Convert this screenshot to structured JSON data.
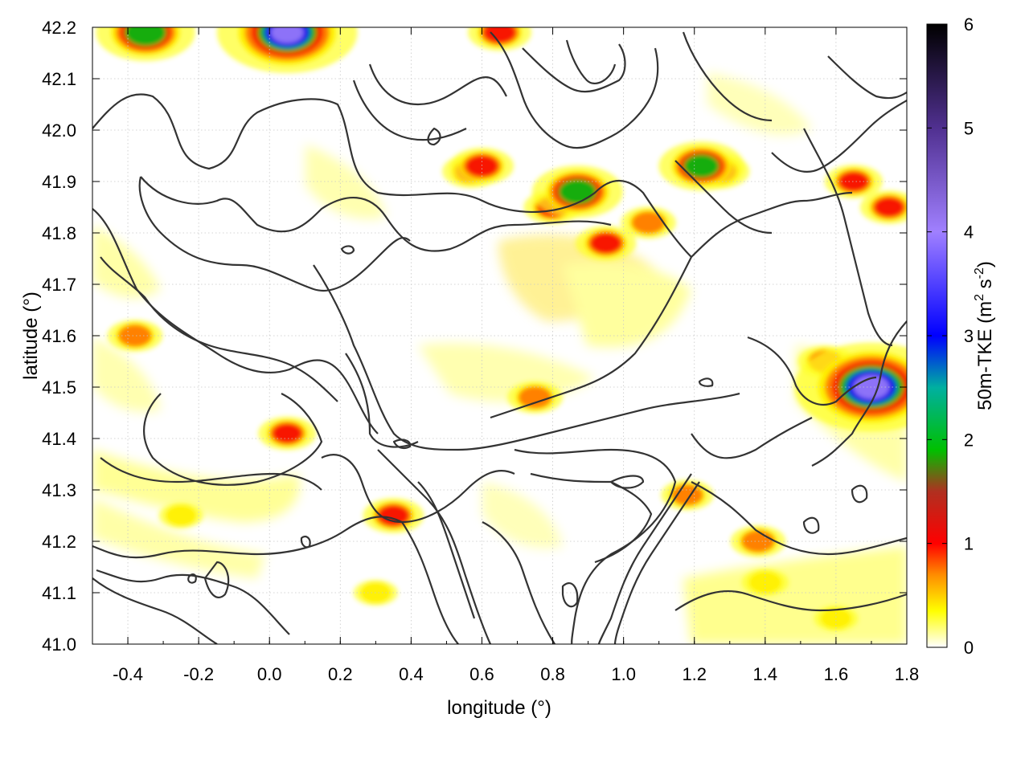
{
  "chart_data": {
    "type": "heatmap",
    "title": "",
    "xlabel": "longitude (°)",
    "ylabel": "latitude (°)",
    "xlim": [
      -0.5,
      1.8
    ],
    "ylim": [
      41.0,
      42.2
    ],
    "xticks": [
      -0.4,
      -0.2,
      0.0,
      0.2,
      0.4,
      0.6,
      0.8,
      1.0,
      1.2,
      1.4,
      1.6,
      1.8
    ],
    "xtick_labels": [
      "-0.4",
      "-0.2",
      "0.0",
      "0.2",
      "0.4",
      "0.6",
      "0.8",
      "1.0",
      "1.2",
      "1.4",
      "1.6",
      "1.8"
    ],
    "yticks": [
      41.0,
      41.1,
      41.2,
      41.3,
      41.4,
      41.5,
      41.6,
      41.7,
      41.8,
      41.9,
      42.0,
      42.1,
      42.2
    ],
    "ytick_labels": [
      "41.0",
      "41.1",
      "41.2",
      "41.3",
      "41.4",
      "41.5",
      "41.6",
      "41.7",
      "41.8",
      "41.9",
      "42.0",
      "42.1",
      "42.2"
    ],
    "grid": true,
    "colorbar": {
      "label": "50m-TKE (m² s⁻²)",
      "label_main": "50m-TKE (m",
      "label_sup1": "2",
      "label_mid": " s",
      "label_sup2": "-2",
      "label_end": ")",
      "range": [
        0,
        6
      ],
      "ticks": [
        0,
        1,
        2,
        3,
        4,
        5,
        6
      ],
      "tick_labels": [
        "0",
        "1",
        "2",
        "3",
        "4",
        "5",
        "6"
      ],
      "stops": [
        {
          "v": 0.0,
          "color": "#ffffff"
        },
        {
          "v": 0.35,
          "color": "#ffff00"
        },
        {
          "v": 0.7,
          "color": "#ff8c00"
        },
        {
          "v": 1.0,
          "color": "#ff0000"
        },
        {
          "v": 1.5,
          "color": "#b03020"
        },
        {
          "v": 1.9,
          "color": "#00c000"
        },
        {
          "v": 2.5,
          "color": "#00b0a0"
        },
        {
          "v": 3.0,
          "color": "#0000ff"
        },
        {
          "v": 4.0,
          "color": "#a080ff"
        },
        {
          "v": 5.0,
          "color": "#503090"
        },
        {
          "v": 6.0,
          "color": "#000000"
        }
      ]
    },
    "hotspots": [
      {
        "lon": 0.95,
        "lat": 41.78,
        "tke": 1.1
      },
      {
        "lon": 0.8,
        "lat": 41.85,
        "tke": 1.0
      },
      {
        "lon": 0.87,
        "lat": 41.88,
        "tke": 2.2
      },
      {
        "lon": 0.6,
        "lat": 41.93,
        "tke": 1.2
      },
      {
        "lon": 0.57,
        "lat": 41.92,
        "tke": 1.0
      },
      {
        "lon": 1.27,
        "lat": 41.92,
        "tke": 1.1
      },
      {
        "lon": 1.22,
        "lat": 41.93,
        "tke": 2.0
      },
      {
        "lon": 1.7,
        "lat": 41.5,
        "tke": 4.5
      },
      {
        "lon": 1.72,
        "lat": 41.47,
        "tke": 1.2
      },
      {
        "lon": 1.57,
        "lat": 41.55,
        "tke": 0.9
      },
      {
        "lon": 0.05,
        "lat": 41.41,
        "tke": 1.0
      },
      {
        "lon": 0.35,
        "lat": 41.25,
        "tke": 1.1
      },
      {
        "lon": 1.65,
        "lat": 41.9,
        "tke": 1.0
      },
      {
        "lon": 1.75,
        "lat": 41.85,
        "tke": 1.0
      },
      {
        "lon": 1.07,
        "lat": 41.82,
        "tke": 0.9
      },
      {
        "lon": 0.75,
        "lat": 41.48,
        "tke": 0.9
      },
      {
        "lon": 1.38,
        "lat": 41.2,
        "tke": 0.9
      },
      {
        "lon": 0.05,
        "lat": 42.19,
        "tke": 4.0
      },
      {
        "lon": -0.35,
        "lat": 42.19,
        "tke": 2.5
      },
      {
        "lon": 0.65,
        "lat": 42.19,
        "tke": 1.2
      },
      {
        "lon": 1.18,
        "lat": 41.29,
        "tke": 0.8
      },
      {
        "lon": 1.4,
        "lat": 41.12,
        "tke": 0.6
      },
      {
        "lon": 1.6,
        "lat": 41.05,
        "tke": 0.5
      },
      {
        "lon": -0.25,
        "lat": 41.25,
        "tke": 0.5
      },
      {
        "lon": -0.38,
        "lat": 41.6,
        "tke": 0.9
      },
      {
        "lon": 0.3,
        "lat": 41.1,
        "tke": 0.5
      }
    ]
  }
}
